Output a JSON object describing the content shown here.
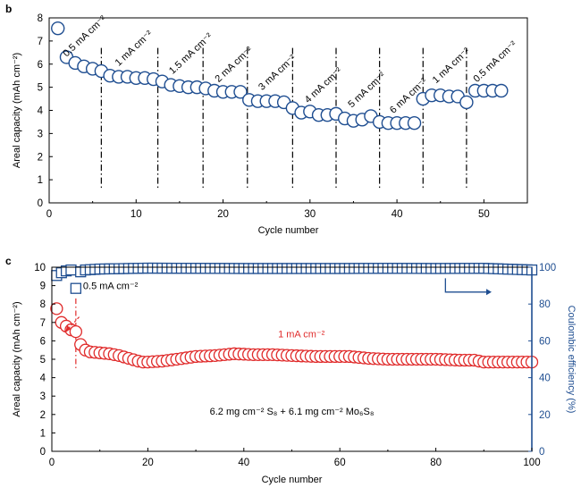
{
  "colors": {
    "blue": "#1f4e91",
    "red": "#e02b2b",
    "fill": "#ffffff",
    "axis": "#000000"
  },
  "chart_data": [
    {
      "panel": "b",
      "type": "scatter",
      "xlabel": "Cycle number",
      "ylabel": "Areal capacity (mAh cm⁻²)",
      "xlim": [
        0,
        55
      ],
      "ylim": [
        0,
        8
      ],
      "xticks": [
        "0",
        "10",
        "20",
        "30",
        "40",
        "50"
      ],
      "yticks": [
        "0",
        "1",
        "2",
        "3",
        "4",
        "5",
        "6",
        "7",
        "8"
      ],
      "series": [
        {
          "x": [
            1,
            2,
            3,
            4,
            5,
            6,
            7,
            8,
            9,
            10,
            11,
            12,
            13,
            14,
            15,
            16,
            17,
            18,
            19,
            20,
            21,
            22,
            23,
            24,
            25,
            26,
            27,
            28,
            29,
            30,
            31,
            32,
            33,
            34,
            35,
            36,
            37,
            38,
            39,
            40,
            41,
            42,
            43,
            44,
            45,
            46,
            47,
            48,
            49,
            50,
            51,
            52
          ],
          "y": [
            7.55,
            6.3,
            6.05,
            5.9,
            5.8,
            5.7,
            5.5,
            5.45,
            5.45,
            5.4,
            5.4,
            5.35,
            5.25,
            5.1,
            5.05,
            5.0,
            5.0,
            4.95,
            4.85,
            4.8,
            4.8,
            4.8,
            4.45,
            4.4,
            4.4,
            4.4,
            4.35,
            4.1,
            3.9,
            3.95,
            3.8,
            3.8,
            3.85,
            3.65,
            3.55,
            3.6,
            3.75,
            3.5,
            3.45,
            3.45,
            3.45,
            3.45,
            4.5,
            4.65,
            4.65,
            4.6,
            4.6,
            4.35,
            4.85,
            4.85,
            4.85,
            4.85
          ]
        }
      ],
      "dividers": [
        6,
        12.5,
        17.7,
        22.8,
        28,
        33,
        38,
        43,
        48
      ],
      "rate_labels": [
        {
          "text": "0.5 mA cm⁻²",
          "x": 2,
          "y": 6.3
        },
        {
          "text": "1 mA cm⁻²",
          "x": 8,
          "y": 5.9
        },
        {
          "text": "1.5 mA cm⁻²",
          "x": 14.2,
          "y": 5.55
        },
        {
          "text": "2 mA cm⁻²",
          "x": 19.5,
          "y": 5.2
        },
        {
          "text": "3 mA cm⁻²",
          "x": 24.5,
          "y": 4.85
        },
        {
          "text": "4 mA cm⁻²",
          "x": 29.8,
          "y": 4.3
        },
        {
          "text": "5 mA cm⁻²",
          "x": 34.8,
          "y": 4.1
        },
        {
          "text": "6 mA cm⁻²",
          "x": 39.6,
          "y": 3.85
        },
        {
          "text": "1 mA cm⁻²",
          "x": 44.5,
          "y": 5.15
        },
        {
          "text": "0.5 mA cm⁻²",
          "x": 49.2,
          "y": 5.2
        }
      ]
    },
    {
      "panel": "c",
      "type": "scatter",
      "xlabel": "Cycle number",
      "ylabel": "Areal capacity (mAh cm⁻²)",
      "y2label": "Coulombic efficiency (%)",
      "xlim": [
        0,
        100
      ],
      "ylim": [
        0,
        10
      ],
      "y2lim": [
        0,
        100
      ],
      "xticks": [
        "0",
        "20",
        "40",
        "60",
        "80",
        "100"
      ],
      "yticks": [
        "0",
        "1",
        "2",
        "3",
        "4",
        "5",
        "6",
        "7",
        "8",
        "9",
        "10"
      ],
      "y2ticks": [
        "0",
        "20",
        "40",
        "60",
        "80",
        "100"
      ],
      "divider": 5,
      "annotation_05": "0.5 mA cm⁻²",
      "annotation_1": "1 mA cm⁻²",
      "loading_text": "6.2 mg cm⁻² S₈ + 6.1 mg cm⁻² Mo₆S₈",
      "capacity_anchors": [
        [
          1,
          7.75
        ],
        [
          2,
          7.0
        ],
        [
          3,
          6.8
        ],
        [
          4,
          6.6
        ],
        [
          5,
          6.5
        ],
        [
          6,
          5.8
        ],
        [
          7,
          5.5
        ],
        [
          8,
          5.4
        ],
        [
          10,
          5.35
        ],
        [
          12,
          5.3
        ],
        [
          14,
          5.2
        ],
        [
          16,
          5.05
        ],
        [
          18,
          4.9
        ],
        [
          19,
          4.85
        ],
        [
          20,
          4.85
        ],
        [
          23,
          4.9
        ],
        [
          26,
          5.0
        ],
        [
          30,
          5.15
        ],
        [
          34,
          5.2
        ],
        [
          38,
          5.3
        ],
        [
          42,
          5.25
        ],
        [
          46,
          5.25
        ],
        [
          50,
          5.2
        ],
        [
          55,
          5.15
        ],
        [
          60,
          5.15
        ],
        [
          62,
          5.15
        ],
        [
          66,
          5.05
        ],
        [
          70,
          5.0
        ],
        [
          75,
          5.0
        ],
        [
          80,
          5.0
        ],
        [
          85,
          4.95
        ],
        [
          88,
          4.95
        ],
        [
          90,
          4.85
        ],
        [
          95,
          4.85
        ],
        [
          100,
          4.85
        ]
      ],
      "ce_anchors": [
        [
          1,
          95.5
        ],
        [
          2,
          97
        ],
        [
          3,
          98
        ],
        [
          4,
          98.5
        ],
        [
          5,
          88.5
        ],
        [
          6,
          97.5
        ],
        [
          7,
          98.5
        ],
        [
          10,
          99
        ],
        [
          20,
          99.5
        ],
        [
          40,
          99.3
        ],
        [
          60,
          99.3
        ],
        [
          70,
          99.4
        ],
        [
          80,
          99.3
        ],
        [
          90,
          99.4
        ],
        [
          100,
          98.5
        ]
      ],
      "n_cycles": 100
    }
  ],
  "panel_labels": {
    "b": "b",
    "c": "c"
  }
}
